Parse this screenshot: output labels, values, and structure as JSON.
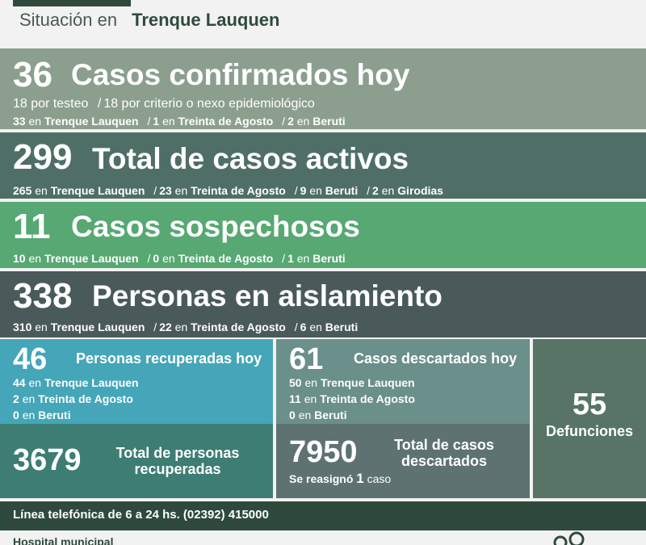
{
  "header": {
    "pre": "Situación en",
    "city": "Trenque Lauquen"
  },
  "confirmados": {
    "number": "36",
    "title": "Casos confirmados hoy",
    "line1": {
      "a_val": "18 por testeo",
      "sep": "/",
      "b_val": "18 por criterio o nexo epidemiológico"
    },
    "line2": [
      {
        "val": "33",
        "en": "en",
        "place": "Trenque Lauquen"
      },
      {
        "val": "1",
        "en": "en",
        "place": "Treinta de Agosto"
      },
      {
        "val": "2",
        "en": "en",
        "place": "Beruti"
      }
    ]
  },
  "activos": {
    "number": "299",
    "title": "Total de casos activos",
    "line": [
      {
        "val": "265",
        "en": "en",
        "place": "Trenque Lauquen"
      },
      {
        "val": "23",
        "en": "en",
        "place": "Treinta de Agosto"
      },
      {
        "val": "9",
        "en": "en",
        "place": "Beruti"
      },
      {
        "val": "2",
        "en": "en",
        "place": "Girodias"
      }
    ]
  },
  "sospechosos": {
    "number": "11",
    "title": "Casos sospechosos",
    "line": [
      {
        "val": "10",
        "en": "en",
        "place": "Trenque Lauquen"
      },
      {
        "val": "0",
        "en": "en",
        "place": "Treinta de Agosto"
      },
      {
        "val": "1",
        "en": "en",
        "place": "Beruti"
      }
    ]
  },
  "aislamiento": {
    "number": "338",
    "title": "Personas en aislamiento",
    "line": [
      {
        "val": "310",
        "en": "en",
        "place": "Trenque Lauquen"
      },
      {
        "val": "22",
        "en": "en",
        "place": "Treinta de Agosto"
      },
      {
        "val": "6",
        "en": "en",
        "place": "Beruti"
      }
    ]
  },
  "separator": "/",
  "recuperadas_hoy": {
    "number": "46",
    "title": "Personas recuperadas hoy",
    "rows": [
      {
        "val": "44",
        "en": "en",
        "place": "Trenque Lauquen"
      },
      {
        "val": "2",
        "en": "en",
        "place": "Treinta de Agosto"
      },
      {
        "val": "0",
        "en": "en",
        "place": "Beruti"
      }
    ]
  },
  "recuperadas_total": {
    "number": "3679",
    "title1": "Total de personas",
    "title2": "recuperadas"
  },
  "descartados_hoy": {
    "number": "61",
    "title": "Casos descartados hoy",
    "rows": [
      {
        "val": "50",
        "en": "en",
        "place": "Trenque Lauquen"
      },
      {
        "val": "11",
        "en": "en",
        "place": "Treinta de Agosto"
      },
      {
        "val": "0",
        "en": "en",
        "place": "Beruti"
      }
    ]
  },
  "descartados_total": {
    "number": "7950",
    "title1": "Total de casos",
    "title2": "descartados",
    "note_pre": "Se reasignó",
    "note_val": "1",
    "note_post": "caso"
  },
  "defunciones": {
    "number": "55",
    "label": "Defunciones"
  },
  "phone": "Línea telefónica de 6 a 24 hs. (02392) 415000",
  "footer": "Hospital municipal",
  "colors": {
    "dark_green": "#2f4a3c",
    "confirmados": "#8c9f8f",
    "activos": "#4f6f66",
    "sospechosos": "#57a872",
    "aislamiento": "#4a5a5a",
    "recuperadas_hoy": "#44a6b8",
    "recuperadas_total": "#3d7d73",
    "descartados_hoy": "#6b8f8a",
    "descartados_total": "#5f7272",
    "defunciones": "#577467"
  }
}
